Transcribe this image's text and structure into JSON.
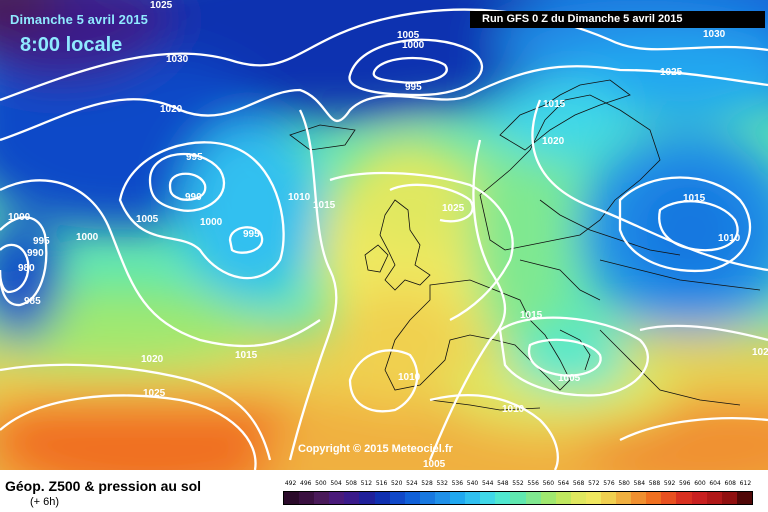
{
  "header": {
    "date": "Dimanche 5 avril 2015",
    "time": "8:00 locale",
    "run": "Run GFS 0 Z du Dimanche 5 avril 2015"
  },
  "footer": {
    "title": "Géop. Z500 & pression au sol",
    "subtitle": "(+ 6h)",
    "copyright": "Copyright © 2015 Meteociel.fr"
  },
  "scale": {
    "labels": [
      "492",
      "496",
      "500",
      "504",
      "508",
      "512",
      "516",
      "520",
      "524",
      "528",
      "532",
      "536",
      "540",
      "544",
      "548",
      "552",
      "556",
      "560",
      "564",
      "568",
      "572",
      "576",
      "580",
      "584",
      "588",
      "592",
      "596",
      "600",
      "604",
      "608",
      "612"
    ],
    "colors": [
      "#2a0a2a",
      "#3a1040",
      "#4a1a5a",
      "#4a1a7a",
      "#3a1a8a",
      "#20209a",
      "#1030b0",
      "#1048c8",
      "#1060d8",
      "#1878e0",
      "#2090e8",
      "#20a8f0",
      "#30c0f0",
      "#40d8e8",
      "#50e8d0",
      "#60e8b0",
      "#80e890",
      "#a0e870",
      "#c0e860",
      "#e0e860",
      "#f0e860",
      "#f0d050",
      "#f0b040",
      "#f09030",
      "#f07020",
      "#e85020",
      "#d83020",
      "#c82020",
      "#b01818",
      "#901010",
      "#500808"
    ]
  },
  "isobars": [
    {
      "label": "1025"
    },
    {
      "label": "1030"
    },
    {
      "label": "1020"
    },
    {
      "label": "1005"
    },
    {
      "label": "1000"
    },
    {
      "label": "995"
    },
    {
      "label": "1030"
    },
    {
      "label": "1025"
    },
    {
      "label": "1015"
    },
    {
      "label": "1020"
    },
    {
      "label": "995"
    },
    {
      "label": "990"
    },
    {
      "label": "1000"
    },
    {
      "label": "1005"
    },
    {
      "label": "1010"
    },
    {
      "label": "1015"
    },
    {
      "label": "1025"
    },
    {
      "label": "995"
    },
    {
      "label": "1000"
    },
    {
      "label": "1000"
    },
    {
      "label": "995"
    },
    {
      "label": "990"
    },
    {
      "label": "980"
    },
    {
      "label": "985"
    },
    {
      "label": "1015"
    },
    {
      "label": "1010"
    },
    {
      "label": "1015"
    },
    {
      "label": "1020"
    },
    {
      "label": "1025"
    },
    {
      "label": "1015"
    },
    {
      "label": "1010"
    },
    {
      "label": "1005"
    },
    {
      "label": "1010"
    },
    {
      "label": "102"
    },
    {
      "label": "1005"
    }
  ]
}
